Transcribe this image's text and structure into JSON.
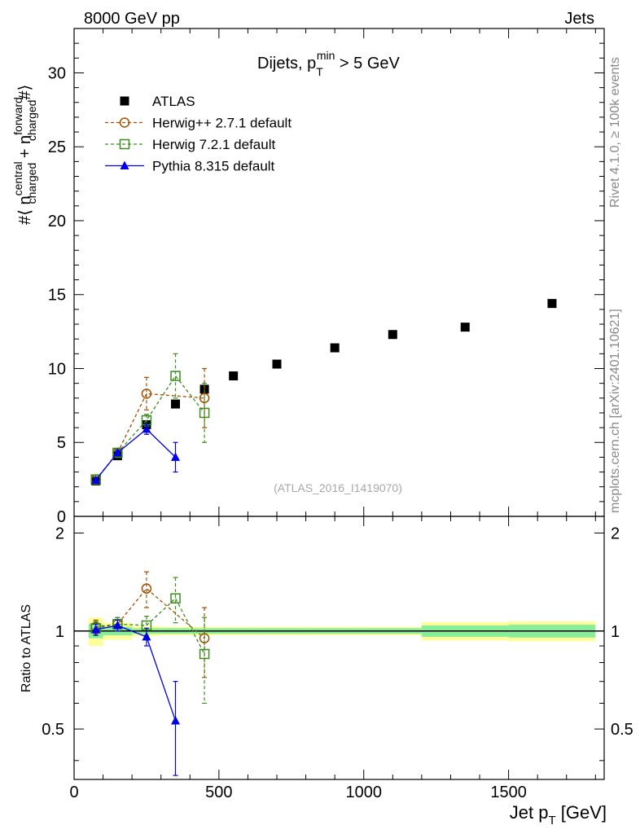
{
  "header": {
    "left": "8000 GeV pp",
    "right": "Jets"
  },
  "side_labels": {
    "rivet": "Rivet 4.1.0, ≥ 100k events",
    "mcplots": "mcplots.cern.ch [arXiv:2401.10621]"
  },
  "chart_data": [
    {
      "type": "scatter",
      "panel": "main",
      "title": "Dijets, p",
      "title_sub": "T",
      "title_sup": "min",
      "title_rest": " > 5 GeV",
      "ylabel_parts": [
        "#⟨ n",
        "central",
        "charged",
        " + n",
        "forward",
        "charged",
        "#⟩"
      ],
      "ylim": [
        0,
        33
      ],
      "xlim": [
        0,
        1830
      ],
      "yticks": [
        0,
        5,
        10,
        15,
        20,
        25,
        30
      ],
      "yticklabels": [
        "0",
        "5",
        "10",
        "15",
        "20",
        "25",
        "30"
      ],
      "watermark": "(ATLAS_2016_I1419070)",
      "series": [
        {
          "name": "ATLAS",
          "color": "#000000",
          "marker": "square-filled",
          "x": [
            75,
            150,
            250,
            350,
            450,
            550,
            700,
            900,
            1100,
            1350,
            1650
          ],
          "y": [
            2.4,
            4.1,
            6.2,
            7.6,
            8.6,
            9.5,
            10.3,
            11.4,
            12.3,
            12.8,
            14.4
          ],
          "err": [
            0,
            0,
            0,
            0,
            0,
            0,
            0,
            0,
            0,
            0,
            0
          ]
        },
        {
          "name": "Herwig++ 2.7.1 default",
          "color": "#a05000",
          "marker": "circle-open",
          "dash": "4,3",
          "x": [
            75,
            150,
            250,
            450
          ],
          "y": [
            2.5,
            4.3,
            8.3,
            8.0
          ],
          "err": [
            0.15,
            0.2,
            1.1,
            2.0
          ]
        },
        {
          "name": "Herwig 7.2.1 default",
          "color": "#3c8c1e",
          "marker": "square-open",
          "dash": "4,3",
          "x": [
            75,
            150,
            250,
            350,
            450
          ],
          "y": [
            2.5,
            4.3,
            6.5,
            9.5,
            7.0
          ],
          "err": [
            0.15,
            0.2,
            0.4,
            1.5,
            2.0
          ]
        },
        {
          "name": "Pythia 8.315 default",
          "color": "#0000e6",
          "marker": "triangle-filled",
          "x": [
            75,
            150,
            250,
            350
          ],
          "y": [
            2.45,
            4.3,
            5.9,
            4.0
          ],
          "err": [
            0.1,
            0.15,
            0.35,
            1.0
          ]
        }
      ]
    },
    {
      "type": "scatter",
      "panel": "ratio",
      "ylabel": "Ratio to ATLAS",
      "ylim": [
        0.35,
        2.25
      ],
      "xlim": [
        0,
        1830
      ],
      "yticks": [
        0.5,
        1,
        2
      ],
      "yticklabels": [
        "0.5",
        "1",
        "2"
      ],
      "xticks": [
        0,
        500,
        1000,
        1500
      ],
      "xticklabels": [
        "0",
        "500",
        "1000",
        "1500"
      ],
      "xlabel": "Jet p",
      "xlabel_sub": "T",
      "xlabel_rest": " [GeV]",
      "bands": {
        "edges": [
          50,
          100,
          200,
          300,
          400,
          500,
          600,
          800,
          1000,
          1200,
          1500,
          1800
        ],
        "green": [
          0.05,
          0.03,
          0.02,
          0.02,
          0.02,
          0.02,
          0.02,
          0.02,
          0.02,
          0.04,
          0.045
        ],
        "yellow": [
          0.1,
          0.06,
          0.035,
          0.03,
          0.03,
          0.03,
          0.03,
          0.03,
          0.03,
          0.065,
          0.07
        ]
      },
      "series": [
        {
          "name": "Herwig++ 2.7.1 default",
          "x": [
            75,
            150,
            250,
            450
          ],
          "y": [
            1.03,
            1.05,
            1.35,
            0.95
          ],
          "err": [
            0.05,
            0.05,
            0.17,
            0.23
          ]
        },
        {
          "name": "Herwig 7.2.1 default",
          "x": [
            75,
            150,
            250,
            350,
            450
          ],
          "y": [
            1.02,
            1.05,
            1.04,
            1.26,
            0.85
          ],
          "err": [
            0.05,
            0.05,
            0.07,
            0.2,
            0.25
          ]
        },
        {
          "name": "Pythia 8.315 default",
          "x": [
            75,
            150,
            250,
            350
          ],
          "y": [
            1.01,
            1.04,
            0.96,
            0.53
          ],
          "err": [
            0.04,
            0.04,
            0.06,
            0.17
          ]
        }
      ]
    }
  ]
}
